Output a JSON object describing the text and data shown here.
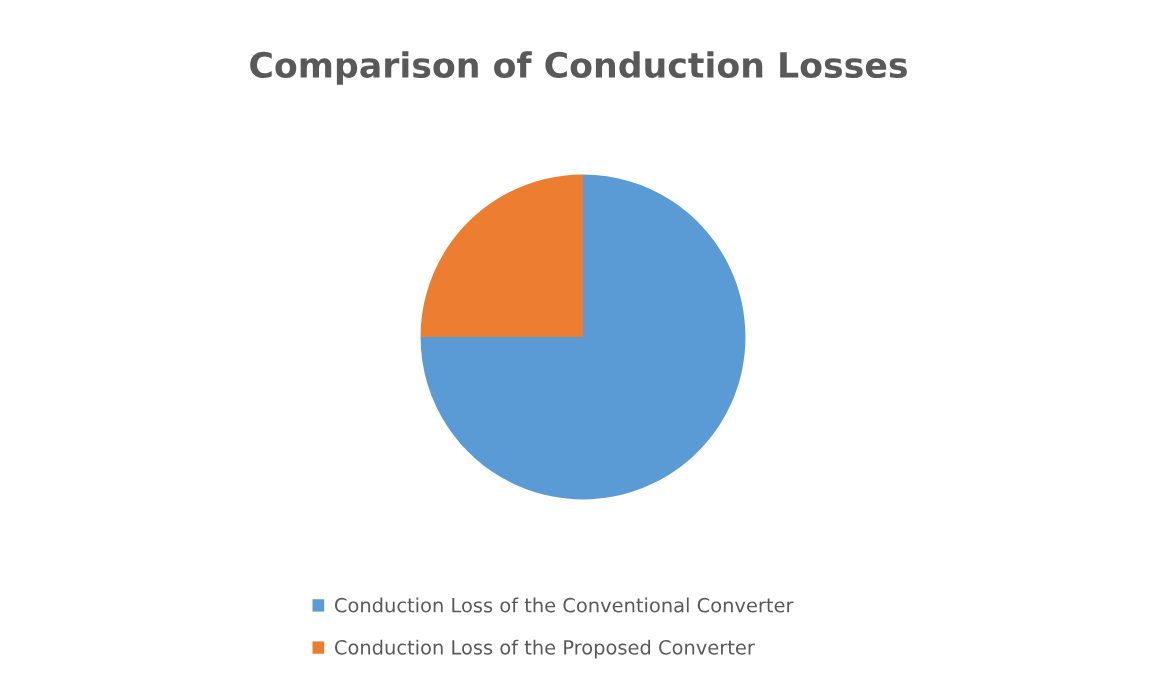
{
  "chart_data": {
    "type": "pie",
    "title": "Comparison of Conduction Losses",
    "categories": [
      "Conduction Loss of the Conventional Converter",
      "Conduction Loss of the Proposed Converter"
    ],
    "values": [
      75,
      25
    ],
    "colors": [
      "#5b9bd5",
      "#ed7d31"
    ],
    "legend": "bottom"
  }
}
